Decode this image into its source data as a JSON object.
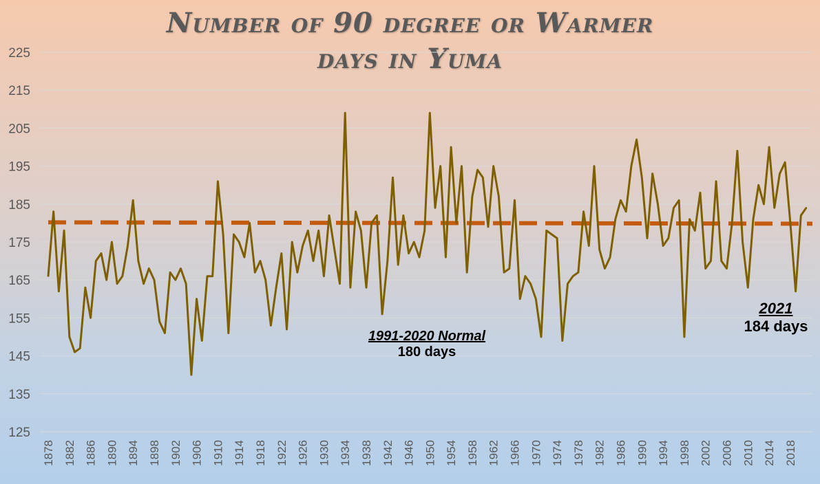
{
  "chart_data": {
    "type": "line",
    "title_line1": "Number of 90 degree or Warmer",
    "title_line2": "days in Yuma",
    "x_start": 1878,
    "x_end": 2021,
    "x_tick_labels": [
      "1878",
      "1882",
      "1886",
      "1890",
      "1894",
      "1898",
      "1902",
      "1906",
      "1910",
      "1914",
      "1918",
      "1922",
      "1926",
      "1930",
      "1934",
      "1938",
      "1942",
      "1946",
      "1950",
      "1954",
      "1958",
      "1962",
      "1966",
      "1970",
      "1974",
      "1978",
      "1982",
      "1986",
      "1990",
      "1994",
      "1998",
      "2002",
      "2006",
      "2010",
      "2014",
      "2018"
    ],
    "y_tick_labels": [
      "225",
      "215",
      "205",
      "195",
      "185",
      "175",
      "165",
      "155",
      "145",
      "135",
      "125"
    ],
    "ylim": [
      125,
      225
    ],
    "grid": true,
    "series": [
      {
        "values": [
          166,
          183,
          162,
          178,
          150,
          146,
          147,
          163,
          155,
          170,
          172,
          165,
          175,
          164,
          166,
          174,
          186,
          170,
          164,
          168,
          165,
          154,
          151,
          167,
          165,
          168,
          164,
          140,
          160,
          149,
          166,
          166,
          191,
          177,
          151,
          177,
          175,
          171,
          180,
          167,
          170,
          165,
          153,
          163,
          172,
          152,
          175,
          167,
          174,
          178,
          170,
          178,
          166,
          182,
          173,
          164,
          209,
          163,
          183,
          178,
          163,
          180,
          182,
          156,
          170,
          192,
          169,
          182,
          172,
          175,
          171,
          178,
          209,
          184,
          195,
          171,
          200,
          180,
          195,
          167,
          187,
          194,
          192,
          179,
          195,
          187,
          167,
          168,
          186,
          160,
          166,
          164,
          160,
          150,
          178,
          177,
          176,
          149,
          164,
          166,
          167,
          183,
          174,
          195,
          173,
          168,
          171,
          181,
          186,
          183,
          195,
          202,
          192,
          176,
          193,
          185,
          174,
          176,
          184,
          186,
          150,
          181,
          178,
          188,
          168,
          170,
          191,
          170,
          168,
          180,
          199,
          175,
          163,
          181,
          190,
          185,
          200,
          184,
          193,
          196,
          180,
          162,
          182,
          184
        ],
        "color": "#7f6000"
      }
    ],
    "normal_line": {
      "value": 180,
      "color": "#c55a11"
    },
    "annotations": {
      "normal_title": "1991-2020 Normal",
      "normal_value": "180 days",
      "latest_title": "2021",
      "latest_value": "184 days"
    }
  }
}
